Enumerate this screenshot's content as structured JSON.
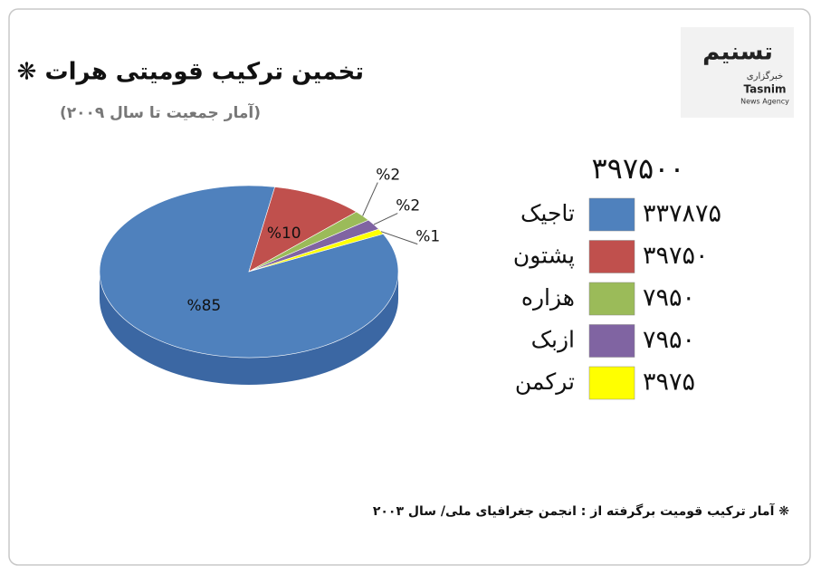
{
  "chart_data": {
    "type": "pie",
    "title": "تخمین ترکیب قومیتی هرات ❋",
    "subtitle": "(آمار جمعیت تا سال ۲۰۰۹)",
    "total": 397500,
    "total_label": "۳۹۷۵۰۰",
    "categories": [
      "تاجیک",
      "پشتون",
      "هزاره",
      "ازبک",
      "ترکمن"
    ],
    "values": [
      337875,
      39750,
      7950,
      7950,
      3975
    ],
    "value_labels": [
      "۳۳۷۸۷۵",
      "۳۹۷۵۰",
      "۷۹۵۰",
      "۷۹۵۰",
      "۳۹۷۵"
    ],
    "percents": [
      85,
      10,
      2,
      2,
      1
    ],
    "percent_labels": [
      "%85",
      "%10",
      "%2",
      "%2",
      "%1"
    ],
    "colors": [
      "#4f81bd",
      "#c0504d",
      "#9bbb59",
      "#8064a2",
      "#ffff00"
    ],
    "note": "❋ آمار ترکیب قومیت برگرفته از : انجمن جغرافیای ملی/ سال ۲۰۰۳",
    "logo": {
      "arabic_name": "تسنیم",
      "arabic_tagline": "خبرگزاری",
      "name": "Tasnim",
      "tagline": "News Agency"
    }
  }
}
